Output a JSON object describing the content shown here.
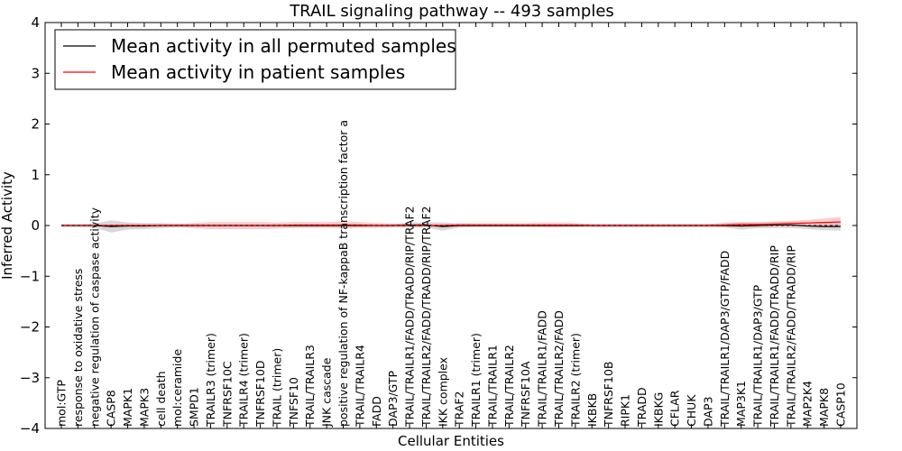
{
  "chart_data": {
    "type": "line",
    "title": "TRAIL signaling pathway -- 493 samples",
    "xlabel": "Cellular Entities",
    "ylabel": "Inferred Activity",
    "ylim": [
      -4,
      4
    ],
    "yticks": [
      -4,
      -3,
      -2,
      -1,
      0,
      1,
      2,
      3,
      4
    ],
    "ytick_labels": [
      "−4",
      "−3",
      "−2",
      "−1",
      "0",
      "1",
      "2",
      "3",
      "4"
    ],
    "legend_position": "top-left",
    "categories": [
      "mol:GTP",
      "response to oxidative stress",
      "negative regulation of caspase activity",
      "CASP8",
      "MAPK1",
      "MAPK3",
      "cell death",
      "mol:ceramide",
      "SMPD1",
      "TRAILR3 (trimer)",
      "TNFRSF10C",
      "TRAILR4 (trimer)",
      "TNFRSF10D",
      "TRAIL (trimer)",
      "TNFSF10",
      "TRAIL/TRAILR3",
      "JNK cascade",
      "positive regulation of NF-kappaB transcription factor a",
      "TRAIL/TRAILR4",
      "FADD",
      "DAP3/GTP",
      "TRAIL/TRAILR1/FADD/TRADD/RIP/TRAF2",
      "TRAIL/TRAILR2/FADD/TRADD/RIP/TRAF2",
      "IKK complex",
      "TRAF2",
      "TRAILR1 (trimer)",
      "TRAIL/TRAILR1",
      "TRAIL/TRAILR2",
      "TNFRSF10A",
      "TRAIL/TRAILR1/FADD",
      "TRAIL/TRAILR2/FADD",
      "TRAILR2 (trimer)",
      "IKBKB",
      "TNFRSF10B",
      "RIPK1",
      "TRADD",
      "IKBKG",
      "CFLAR",
      "CHUK",
      "DAP3",
      "TRAIL/TRAILR1/DAP3/GTP/FADD",
      "MAP3K1",
      "TRAIL/TRAILR1/DAP3/GTP",
      "TRAIL/TRAILR1/FADD/TRADD/RIP",
      "TRAIL/TRAILR2/FADD/TRADD/RIP",
      "MAP2K4",
      "MAPK8",
      "CASP10"
    ],
    "series": [
      {
        "name": "Mean activity in all permuted samples",
        "color": "#000000",
        "band_color": "#b0b0b0",
        "values": [
          0.0,
          0.0,
          0.0,
          -0.02,
          -0.01,
          -0.01,
          0.0,
          0.0,
          0.0,
          0.0,
          0.0,
          0.0,
          0.0,
          0.0,
          0.0,
          0.0,
          0.0,
          0.0,
          0.0,
          0.0,
          0.0,
          0.01,
          0.01,
          -0.02,
          0.0,
          0.0,
          0.0,
          0.0,
          0.0,
          0.0,
          0.0,
          0.0,
          0.0,
          0.0,
          0.0,
          0.0,
          0.0,
          0.0,
          0.0,
          0.0,
          0.0,
          -0.01,
          0.0,
          0.01,
          0.01,
          -0.01,
          -0.02,
          -0.02
        ],
        "band": [
          0.03,
          0.03,
          0.04,
          0.12,
          0.07,
          0.06,
          0.05,
          0.04,
          0.04,
          0.03,
          0.03,
          0.03,
          0.03,
          0.03,
          0.03,
          0.03,
          0.03,
          0.04,
          0.03,
          0.03,
          0.03,
          0.05,
          0.05,
          0.08,
          0.04,
          0.03,
          0.03,
          0.03,
          0.03,
          0.03,
          0.03,
          0.03,
          0.03,
          0.03,
          0.03,
          0.03,
          0.03,
          0.03,
          0.03,
          0.03,
          0.04,
          0.07,
          0.05,
          0.06,
          0.06,
          0.06,
          0.07,
          0.08
        ]
      },
      {
        "name": "Mean activity in patient samples",
        "color": "#ff0000",
        "band_color": "#f4a6a6",
        "values": [
          0.0,
          0.0,
          0.0,
          0.0,
          0.0,
          0.0,
          0.0,
          0.0,
          0.0,
          0.0,
          0.0,
          0.0,
          0.0,
          0.0,
          0.01,
          0.01,
          0.01,
          0.01,
          0.01,
          0.0,
          0.0,
          0.0,
          0.0,
          0.0,
          0.01,
          0.01,
          0.01,
          0.01,
          0.01,
          0.01,
          0.01,
          0.01,
          0.0,
          0.0,
          0.0,
          0.0,
          0.0,
          0.0,
          0.0,
          0.0,
          0.01,
          0.02,
          0.02,
          0.03,
          0.04,
          0.05,
          0.06,
          0.07
        ],
        "band": [
          0.0,
          0.0,
          0.01,
          0.02,
          0.03,
          0.03,
          0.03,
          0.03,
          0.05,
          0.07,
          0.07,
          0.07,
          0.07,
          0.06,
          0.06,
          0.06,
          0.06,
          0.07,
          0.06,
          0.05,
          0.04,
          0.03,
          0.03,
          0.03,
          0.04,
          0.04,
          0.04,
          0.04,
          0.04,
          0.05,
          0.05,
          0.04,
          0.03,
          0.03,
          0.03,
          0.03,
          0.03,
          0.03,
          0.03,
          0.03,
          0.05,
          0.05,
          0.05,
          0.05,
          0.05,
          0.06,
          0.08,
          0.1
        ]
      }
    ]
  }
}
